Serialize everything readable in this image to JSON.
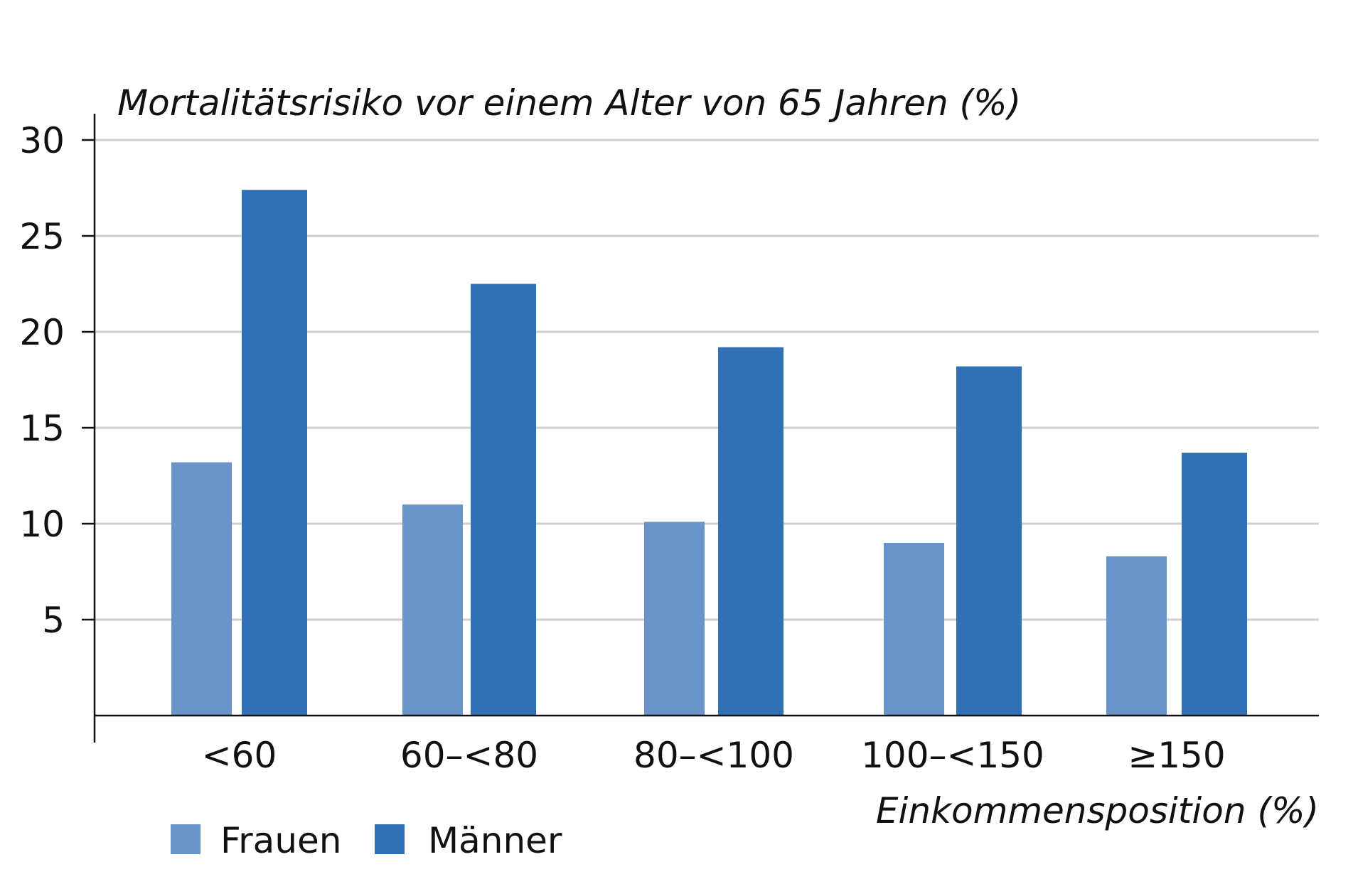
{
  "chart_data": {
    "type": "bar",
    "title": "",
    "ylabel": "Mortalitätsrisiko vor einem Alter von 65 Jahren (%)",
    "xlabel": "Einkommensposition (%)",
    "categories": [
      "<60",
      "60–<80",
      "80–<100",
      "100–<150",
      "≥150"
    ],
    "series": [
      {
        "name": "Frauen",
        "values": [
          13.2,
          11.0,
          10.1,
          9.0,
          8.3
        ],
        "color": "#6a94c9"
      },
      {
        "name": "Männer",
        "values": [
          27.4,
          22.5,
          19.2,
          18.2,
          13.7
        ],
        "color": "#3270b5"
      }
    ],
    "ylim": [
      0,
      30
    ],
    "yticks": [
      5,
      10,
      15,
      20,
      25,
      30
    ],
    "grid": true,
    "legend": "bottom-left"
  }
}
